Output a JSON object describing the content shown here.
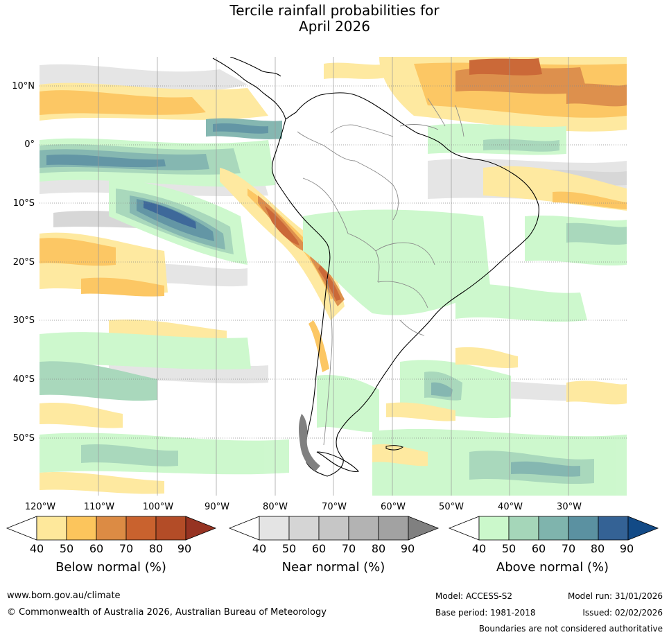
{
  "title": {
    "line1": "Tercile rainfall probabilities for",
    "line2": "April 2026"
  },
  "map": {
    "lat_labels": [
      "10°N",
      "0°",
      "10°S",
      "20°S",
      "30°S",
      "40°S",
      "50°S"
    ],
    "lon_labels": [
      "120°W",
      "110°W",
      "100°W",
      "90°W",
      "80°W",
      "70°W",
      "60°W",
      "50°W",
      "40°W",
      "30°W"
    ],
    "colors": {
      "below": [
        "#fee89b",
        "#fcc55c",
        "#dc8b44",
        "#c9622e",
        "#b34c27",
        "#963322"
      ],
      "near": [
        "#e4e4e4",
        "#d5d5d5",
        "#c6c6c6",
        "#b3b3b3",
        "#a2a2a2",
        "#808080"
      ],
      "above": [
        "#cbf8cb",
        "#a5d6b9",
        "#7fb4ad",
        "#5b91a1",
        "#346295",
        "#124a86"
      ]
    }
  },
  "legends": [
    {
      "title": "Below normal (%)",
      "ticks": [
        "40",
        "50",
        "60",
        "70",
        "80",
        "90"
      ]
    },
    {
      "title": "Near normal (%)",
      "ticks": [
        "40",
        "50",
        "60",
        "70",
        "80",
        "90"
      ]
    },
    {
      "title": "Above normal (%)",
      "ticks": [
        "40",
        "50",
        "60",
        "70",
        "80",
        "90"
      ]
    }
  ],
  "footer": {
    "url": "www.bom.gov.au/climate",
    "copyright": "© Commonwealth of Australia 2026, Australian Bureau of Meteorology",
    "model": "Model: ACCESS-S2",
    "base_period": "Base period: 1981-2018",
    "model_run": "Model run: 31/01/2026",
    "issued": "Issued: 02/02/2026",
    "disclaimer": "Boundaries are not considered authoritative"
  }
}
